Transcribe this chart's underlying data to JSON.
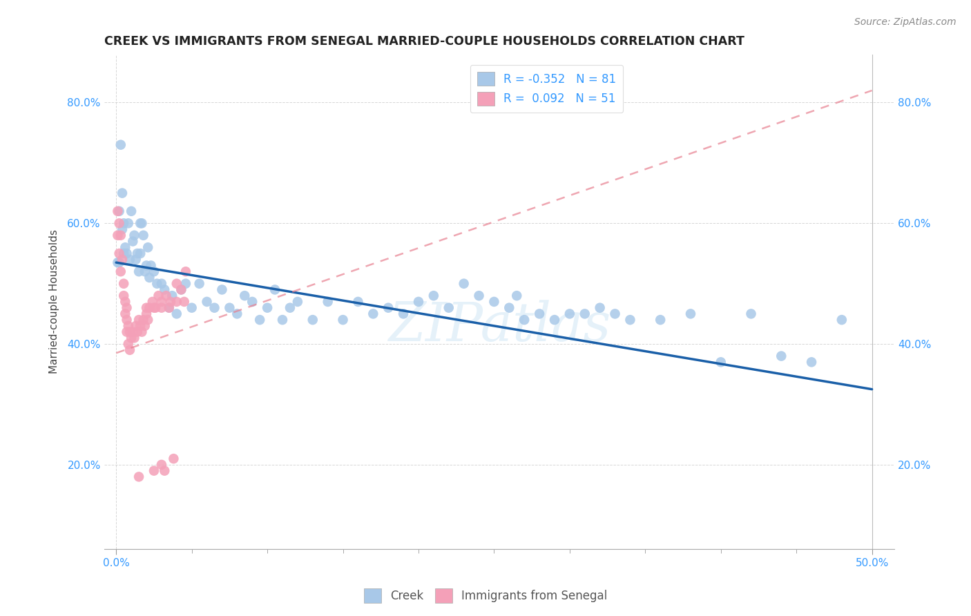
{
  "title": "CREEK VS IMMIGRANTS FROM SENEGAL MARRIED-COUPLE HOUSEHOLDS CORRELATION CHART",
  "source": "Source: ZipAtlas.com",
  "xlim": [
    -0.008,
    0.515
  ],
  "ylim": [
    0.06,
    0.88
  ],
  "ylabel_ticks": [
    0.2,
    0.4,
    0.6,
    0.8
  ],
  "ylabel_labels": [
    "20.0%",
    "40.0%",
    "60.0%",
    "80.0%"
  ],
  "xtick_major": [
    0.0,
    0.5
  ],
  "xtick_major_labels": [
    "0.0%",
    "50.0%"
  ],
  "xtick_minor": [
    0.05,
    0.1,
    0.15,
    0.2,
    0.25,
    0.3,
    0.35,
    0.4,
    0.45
  ],
  "legend_labels": [
    "Creek",
    "Immigrants from Senegal"
  ],
  "creek_color": "#a8c8e8",
  "senegal_color": "#f4a0b8",
  "creek_line_color": "#1a5fa8",
  "senegal_line_color": "#e88090",
  "creek_R": -0.352,
  "creek_N": 81,
  "senegal_R": 0.092,
  "senegal_N": 51,
  "creek_line_x0": 0.0,
  "creek_line_y0": 0.535,
  "creek_line_x1": 0.5,
  "creek_line_y1": 0.325,
  "senegal_line_x0": 0.0,
  "senegal_line_y0": 0.385,
  "senegal_line_x1": 0.5,
  "senegal_line_y1": 0.82,
  "creek_x": [
    0.001,
    0.002,
    0.002,
    0.003,
    0.004,
    0.004,
    0.005,
    0.005,
    0.006,
    0.007,
    0.008,
    0.009,
    0.01,
    0.011,
    0.012,
    0.013,
    0.014,
    0.015,
    0.016,
    0.016,
    0.017,
    0.018,
    0.019,
    0.02,
    0.021,
    0.022,
    0.023,
    0.025,
    0.027,
    0.03,
    0.032,
    0.035,
    0.037,
    0.04,
    0.043,
    0.046,
    0.05,
    0.055,
    0.06,
    0.065,
    0.07,
    0.075,
    0.08,
    0.085,
    0.09,
    0.095,
    0.1,
    0.105,
    0.11,
    0.115,
    0.12,
    0.13,
    0.14,
    0.15,
    0.16,
    0.17,
    0.18,
    0.19,
    0.2,
    0.21,
    0.22,
    0.23,
    0.24,
    0.25,
    0.26,
    0.265,
    0.27,
    0.28,
    0.29,
    0.3,
    0.31,
    0.32,
    0.33,
    0.34,
    0.36,
    0.38,
    0.4,
    0.42,
    0.44,
    0.46,
    0.48
  ],
  "creek_y": [
    0.535,
    0.535,
    0.62,
    0.73,
    0.65,
    0.59,
    0.6,
    0.55,
    0.56,
    0.55,
    0.6,
    0.54,
    0.62,
    0.57,
    0.58,
    0.54,
    0.55,
    0.52,
    0.55,
    0.6,
    0.6,
    0.58,
    0.52,
    0.53,
    0.56,
    0.51,
    0.53,
    0.52,
    0.5,
    0.5,
    0.49,
    0.46,
    0.48,
    0.45,
    0.49,
    0.5,
    0.46,
    0.5,
    0.47,
    0.46,
    0.49,
    0.46,
    0.45,
    0.48,
    0.47,
    0.44,
    0.46,
    0.49,
    0.44,
    0.46,
    0.47,
    0.44,
    0.47,
    0.44,
    0.47,
    0.45,
    0.46,
    0.45,
    0.47,
    0.48,
    0.46,
    0.5,
    0.48,
    0.47,
    0.46,
    0.48,
    0.44,
    0.45,
    0.44,
    0.45,
    0.45,
    0.46,
    0.45,
    0.44,
    0.44,
    0.45,
    0.37,
    0.45,
    0.38,
    0.37,
    0.44
  ],
  "senegal_x": [
    0.001,
    0.001,
    0.002,
    0.002,
    0.003,
    0.003,
    0.004,
    0.005,
    0.005,
    0.006,
    0.006,
    0.007,
    0.007,
    0.007,
    0.008,
    0.008,
    0.009,
    0.009,
    0.01,
    0.011,
    0.012,
    0.013,
    0.014,
    0.015,
    0.016,
    0.017,
    0.018,
    0.019,
    0.02,
    0.021,
    0.022,
    0.024,
    0.026,
    0.028,
    0.03,
    0.033,
    0.036,
    0.04,
    0.043,
    0.046,
    0.02,
    0.025,
    0.03,
    0.035,
    0.04,
    0.045,
    0.015,
    0.025,
    0.03,
    0.032,
    0.038
  ],
  "senegal_y": [
    0.62,
    0.58,
    0.6,
    0.55,
    0.58,
    0.52,
    0.54,
    0.5,
    0.48,
    0.47,
    0.45,
    0.44,
    0.42,
    0.46,
    0.43,
    0.4,
    0.42,
    0.39,
    0.41,
    0.42,
    0.41,
    0.43,
    0.42,
    0.44,
    0.43,
    0.42,
    0.44,
    0.43,
    0.45,
    0.44,
    0.46,
    0.47,
    0.46,
    0.48,
    0.47,
    0.48,
    0.47,
    0.5,
    0.49,
    0.52,
    0.46,
    0.46,
    0.46,
    0.46,
    0.47,
    0.47,
    0.18,
    0.19,
    0.2,
    0.19,
    0.21
  ]
}
